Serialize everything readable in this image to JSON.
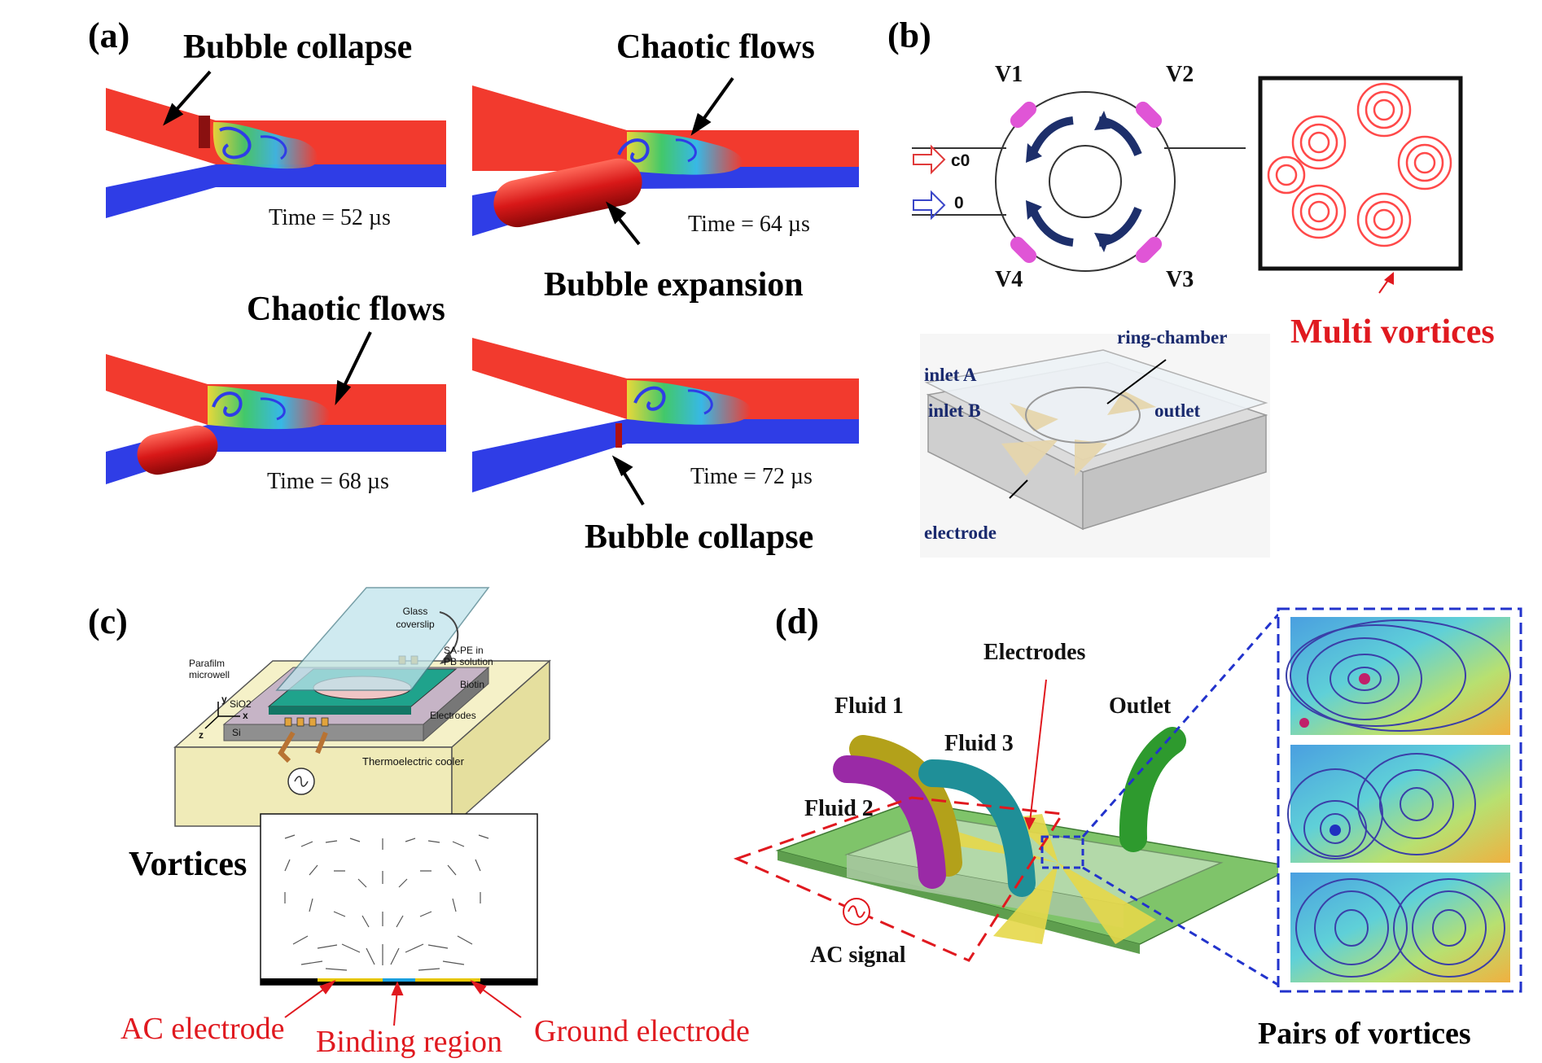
{
  "panel_a": {
    "label": "(a)",
    "frames": [
      {
        "time": "Time = 52 µs"
      },
      {
        "time": "Time = 64 µs"
      },
      {
        "time": "Time = 68 µs"
      },
      {
        "time": "Time = 72 µs"
      }
    ],
    "annotations": {
      "collapse_top": "Bubble collapse",
      "chaotic_top": "Chaotic flows",
      "expansion": "Bubble expansion",
      "chaotic_bottom": "Chaotic flows",
      "collapse_bottom": "Bubble collapse"
    }
  },
  "panel_b": {
    "label": "(b)",
    "valves": [
      "V1",
      "V2",
      "V4",
      "V3"
    ],
    "inlets": [
      "c0",
      "0"
    ],
    "multi_vortices": "Multi vortices",
    "device": {
      "inlet_a": "inlet A",
      "inlet_b": "inlet B",
      "ring_chamber": "ring-chamber",
      "outlet": "outlet",
      "electrode": "electrode"
    }
  },
  "panel_c": {
    "label": "(c)",
    "device": {
      "glass": "Glass coverslip",
      "sape_1": "SA-PE in",
      "sape_2": "PB solution",
      "biotin": "Biotin",
      "parafilm_1": "Parafilm",
      "parafilm_2": "microwell",
      "sio2": "SiO2",
      "si": "Si",
      "electrodes": "Electrodes",
      "tec": "Thermoelectric cooler",
      "axis_x": "x",
      "axis_y": "y",
      "axis_z": "z"
    },
    "vortices": "Vortices",
    "ac_electrode": "AC electrode",
    "binding_region": "Binding region",
    "ground_electrode": "Ground electrode"
  },
  "panel_d": {
    "label": "(d)",
    "electrodes": "Electrodes",
    "fluid1": "Fluid 1",
    "fluid2": "Fluid 2",
    "fluid3": "Fluid 3",
    "outlet": "Outlet",
    "ac_signal": "AC signal",
    "pairs": "Pairs of vortices"
  },
  "colors": {
    "annotation_red": "#e0191f",
    "fluid_red": "#f23a2e",
    "fluid_blue": "#2f3de6",
    "navy": "#1a2a6e",
    "dashed_blue": "#2233cc"
  }
}
